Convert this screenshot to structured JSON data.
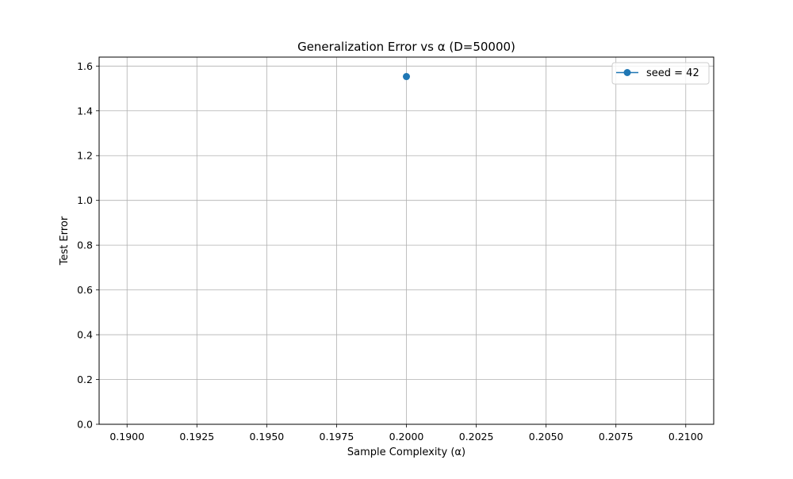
{
  "chart_data": {
    "type": "line",
    "title": "Generalization Error vs α (D=50000)",
    "xlabel": "Sample Complexity (α)",
    "ylabel": "Test Error",
    "xlim": [
      0.189,
      0.211
    ],
    "ylim": [
      0.0,
      1.64
    ],
    "xticks": [
      0.19,
      0.1925,
      0.195,
      0.1975,
      0.2,
      0.2025,
      0.205,
      0.2075,
      0.21
    ],
    "xtick_labels": [
      "0.1900",
      "0.1925",
      "0.1950",
      "0.1975",
      "0.2000",
      "0.2025",
      "0.2050",
      "0.2075",
      "0.2100"
    ],
    "yticks": [
      0.0,
      0.2,
      0.4,
      0.6,
      0.8,
      1.0,
      1.2,
      1.4,
      1.6
    ],
    "ytick_labels": [
      "0.0",
      "0.2",
      "0.4",
      "0.6",
      "0.8",
      "1.0",
      "1.2",
      "1.4",
      "1.6"
    ],
    "grid": true,
    "legend_position": "top-right",
    "series": [
      {
        "name": "seed = 42",
        "color": "#1f77b4",
        "marker": "circle",
        "x": [
          0.2
        ],
        "y": [
          1.553
        ]
      }
    ]
  }
}
